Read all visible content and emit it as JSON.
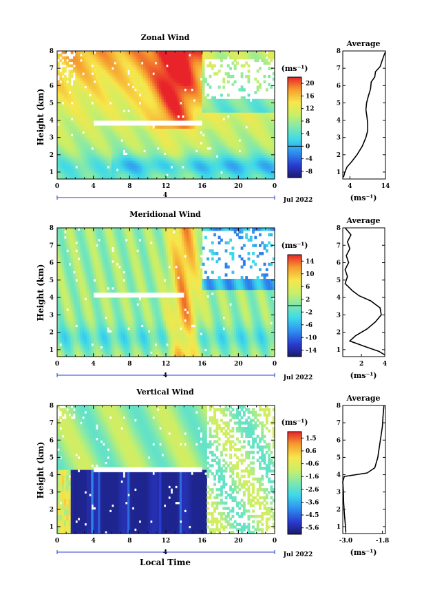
{
  "figure": {
    "xlabel": "Local Time",
    "ylabel": "Height (km)",
    "avg_title": "Average",
    "cb_unit": "(ms⁻¹)",
    "avg_unit": "(ms⁻¹)",
    "date_label": "Jul 2022",
    "day_label": "4"
  },
  "chart_data": [
    {
      "type": "heatmap",
      "title": "Zonal Wind",
      "x_ticks": [
        "0",
        "4",
        "8",
        "12",
        "16",
        "20",
        "0"
      ],
      "y_ticks": [
        "1",
        "2",
        "3",
        "4",
        "5",
        "6",
        "7",
        "8"
      ],
      "xlim": [
        0,
        24
      ],
      "ylim": [
        0.6,
        8
      ],
      "colorbar": {
        "ticks": [
          "20",
          "16",
          "12",
          "8",
          "4",
          "0",
          "-4",
          "-8"
        ],
        "range": [
          -10,
          22
        ]
      },
      "avg_profile": {
        "x_ticks": [
          "4",
          "14"
        ],
        "xlim": [
          2,
          14
        ],
        "points": [
          [
            2.2,
            0.7
          ],
          [
            2.6,
            1.0
          ],
          [
            3.2,
            1.3
          ],
          [
            4.5,
            1.6
          ],
          [
            6.0,
            2.0
          ],
          [
            7.5,
            2.5
          ],
          [
            8.5,
            3.0
          ],
          [
            9.0,
            3.4
          ],
          [
            9.0,
            3.8
          ],
          [
            8.8,
            4.2
          ],
          [
            8.5,
            4.6
          ],
          [
            8.7,
            5.0
          ],
          [
            9.2,
            5.4
          ],
          [
            9.8,
            5.8
          ],
          [
            10.0,
            6.2
          ],
          [
            11.0,
            6.5
          ],
          [
            11.2,
            6.8
          ],
          [
            12.5,
            7.1
          ],
          [
            13.0,
            7.4
          ],
          [
            13.5,
            7.7
          ],
          [
            14.0,
            7.95
          ]
        ]
      }
    },
    {
      "type": "heatmap",
      "title": "Meridional Wind",
      "x_ticks": [
        "0",
        "4",
        "8",
        "12",
        "16",
        "20",
        "0"
      ],
      "y_ticks": [
        "1",
        "2",
        "3",
        "4",
        "5",
        "6",
        "7",
        "8"
      ],
      "xlim": [
        0,
        24
      ],
      "ylim": [
        0.6,
        8
      ],
      "colorbar": {
        "ticks": [
          "14",
          "10",
          "6",
          "2",
          "-2",
          "-6",
          "-10",
          "-14"
        ],
        "range": [
          -16,
          16
        ]
      },
      "avg_profile": {
        "x_ticks": [
          "2",
          "4"
        ],
        "xlim": [
          0.4,
          4
        ],
        "points": [
          [
            4.0,
            0.7
          ],
          [
            3.5,
            0.9
          ],
          [
            2.2,
            1.2
          ],
          [
            1.0,
            1.5
          ],
          [
            1.5,
            1.8
          ],
          [
            2.5,
            2.2
          ],
          [
            3.2,
            2.6
          ],
          [
            3.7,
            3.0
          ],
          [
            3.6,
            3.4
          ],
          [
            2.8,
            3.8
          ],
          [
            1.8,
            4.1
          ],
          [
            1.2,
            4.4
          ],
          [
            0.6,
            4.8
          ],
          [
            0.8,
            5.2
          ],
          [
            0.6,
            5.6
          ],
          [
            0.9,
            6.0
          ],
          [
            0.7,
            6.4
          ],
          [
            1.0,
            6.8
          ],
          [
            0.8,
            7.2
          ],
          [
            1.1,
            7.6
          ],
          [
            0.6,
            8.0
          ]
        ]
      }
    },
    {
      "type": "heatmap",
      "title": "Vertical Wind",
      "x_ticks": [
        "0",
        "4",
        "8",
        "12",
        "16",
        "20",
        "0"
      ],
      "y_ticks": [
        "1",
        "2",
        "3",
        "4",
        "5",
        "6",
        "7",
        "8"
      ],
      "xlim": [
        0,
        24
      ],
      "ylim": [
        0.6,
        8
      ],
      "colorbar": {
        "ticks": [
          "1.5",
          "0.6",
          "-0.6",
          "-1.6",
          "-2.6",
          "-3.6",
          "-4.5",
          "-5.6"
        ],
        "range": [
          -6,
          2
        ]
      },
      "avg_profile": {
        "x_ticks": [
          "-3.0",
          "-1.8"
        ],
        "xlim": [
          -3.1,
          -1.7
        ],
        "points": [
          [
            -3.0,
            0.7
          ],
          [
            -3.02,
            1.2
          ],
          [
            -3.05,
            1.8
          ],
          [
            -3.07,
            2.4
          ],
          [
            -3.08,
            3.0
          ],
          [
            -3.1,
            3.6
          ],
          [
            -3.05,
            3.9
          ],
          [
            -2.3,
            4.1
          ],
          [
            -2.05,
            4.4
          ],
          [
            -1.95,
            5.0
          ],
          [
            -1.9,
            5.6
          ],
          [
            -1.85,
            6.2
          ],
          [
            -1.8,
            6.8
          ],
          [
            -1.78,
            7.4
          ],
          [
            -1.75,
            8.0
          ]
        ]
      }
    }
  ]
}
